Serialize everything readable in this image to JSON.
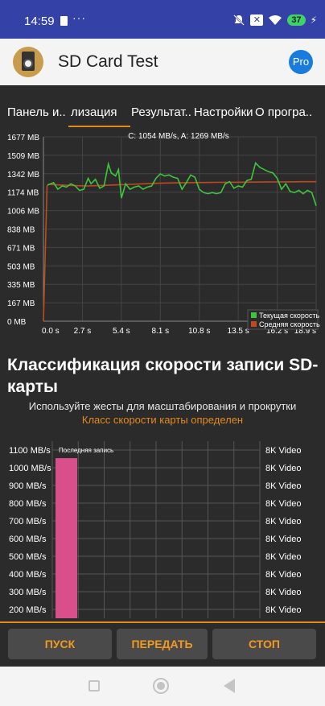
{
  "status_bar": {
    "time": "14:59",
    "dots": "···",
    "battery": "37",
    "x_badge": "✕"
  },
  "app_bar": {
    "title": "SD Card Test",
    "pro_label": "Pro"
  },
  "tabs": [
    {
      "label": "Панель и.."
    },
    {
      "label": "лизация"
    },
    {
      "label": "Результат.."
    },
    {
      "label": "Настройки"
    },
    {
      "label": "О програ.."
    }
  ],
  "chart_data": [
    {
      "type": "line",
      "title": "C: 1054 MB/s, A: 1269 MB/s",
      "y_ticks": [
        "1677 MB",
        "1509 MB",
        "1342 MB",
        "1174 MB",
        "1006 MB",
        "838 MB",
        "671 MB",
        "503 MB",
        "335 MB",
        "167 MB",
        "0 MB"
      ],
      "x_ticks": [
        "0.0 s",
        "2.7 s",
        "5.4 s",
        "8.1 s",
        "10.8 s",
        "13.5 s",
        "16.2 s",
        "18.9 s"
      ],
      "xlim": [
        0,
        18.9
      ],
      "ylim": [
        0,
        1677
      ],
      "grid": true,
      "legend_position": "bottom-right",
      "series": [
        {
          "name": "Текущая скорость",
          "color": "#3ec53e",
          "x": [
            0.3,
            0.7,
            1.0,
            1.3,
            1.6,
            1.9,
            2.2,
            2.5,
            2.8,
            3.1,
            3.3,
            3.6,
            3.9,
            4.2,
            4.5,
            4.7,
            5.0,
            5.2,
            5.4,
            5.7,
            6.0,
            6.3,
            6.6,
            6.9,
            7.2,
            7.5,
            7.8,
            8.1,
            8.4,
            8.7,
            9.0,
            9.3,
            9.6,
            9.9,
            10.2,
            10.5,
            10.8,
            11.1,
            11.4,
            11.7,
            12.0,
            12.3,
            12.6,
            12.9,
            13.2,
            13.5,
            13.8,
            14.1,
            14.4,
            14.7,
            15.0,
            15.3,
            15.6,
            15.9,
            16.2,
            16.5,
            16.8,
            17.1,
            17.4,
            17.7,
            18.0,
            18.3,
            18.6,
            18.9
          ],
          "y": [
            1240,
            1260,
            1200,
            1230,
            1220,
            1250,
            1230,
            1190,
            1200,
            1300,
            1250,
            1290,
            1210,
            1230,
            1430,
            1350,
            1320,
            1380,
            1120,
            1250,
            1200,
            1220,
            1230,
            1200,
            1220,
            1230,
            1300,
            1340,
            1320,
            1330,
            1310,
            1300,
            1200,
            1260,
            1330,
            1310,
            1200,
            1170,
            1160,
            1170,
            1160,
            1170,
            1250,
            1270,
            1210,
            1230,
            1220,
            1280,
            1290,
            1440,
            1400,
            1380,
            1360,
            1350,
            1300,
            1200,
            1250,
            1180,
            1170,
            1190,
            1160,
            1190,
            1170,
            1050
          ]
        },
        {
          "name": "Средняя скорость",
          "color": "#c04a1e",
          "x": [
            0.0,
            0.25,
            0.35,
            1.0,
            2.0,
            3.0,
            4.0,
            5.0,
            6.0,
            7.0,
            8.0,
            9.0,
            10.0,
            11.0,
            12.0,
            13.0,
            14.0,
            15.0,
            16.0,
            17.0,
            18.0,
            18.9
          ],
          "y": [
            0,
            1230,
            1245,
            1240,
            1235,
            1230,
            1235,
            1240,
            1245,
            1250,
            1255,
            1258,
            1260,
            1262,
            1263,
            1264,
            1265,
            1266,
            1267,
            1268,
            1269,
            1269
          ]
        }
      ]
    },
    {
      "type": "bar",
      "title": "",
      "y_ticks": [
        "1100 MB/s",
        "1000 MB/s",
        "900 MB/s",
        "800 MB/s",
        "700 MB/s",
        "600 MB/s",
        "500 MB/s",
        "400 MB/s",
        "300 MB/s",
        "200 MB/s"
      ],
      "right_labels": [
        "8K Video",
        "8K Video",
        "8K Video",
        "8K Video",
        "8K Video",
        "8K Video",
        "8K Video",
        "8K Video",
        "8K Video",
        "8K Video"
      ],
      "ylim": [
        150,
        1150
      ],
      "series": [
        {
          "name": "Последняя запись",
          "values": [
            1054
          ],
          "color": "#d94f8b"
        }
      ]
    }
  ],
  "main": {
    "heading": "Классификация скорости записи SD-карты",
    "subtitle": "Используйте жесты для масштабирования и прокрутки",
    "status_line": "Класс скорости карты определен"
  },
  "buttons": {
    "start": "ПУСК",
    "share": "ПЕРЕДАТЬ",
    "stop": "СТОП"
  }
}
